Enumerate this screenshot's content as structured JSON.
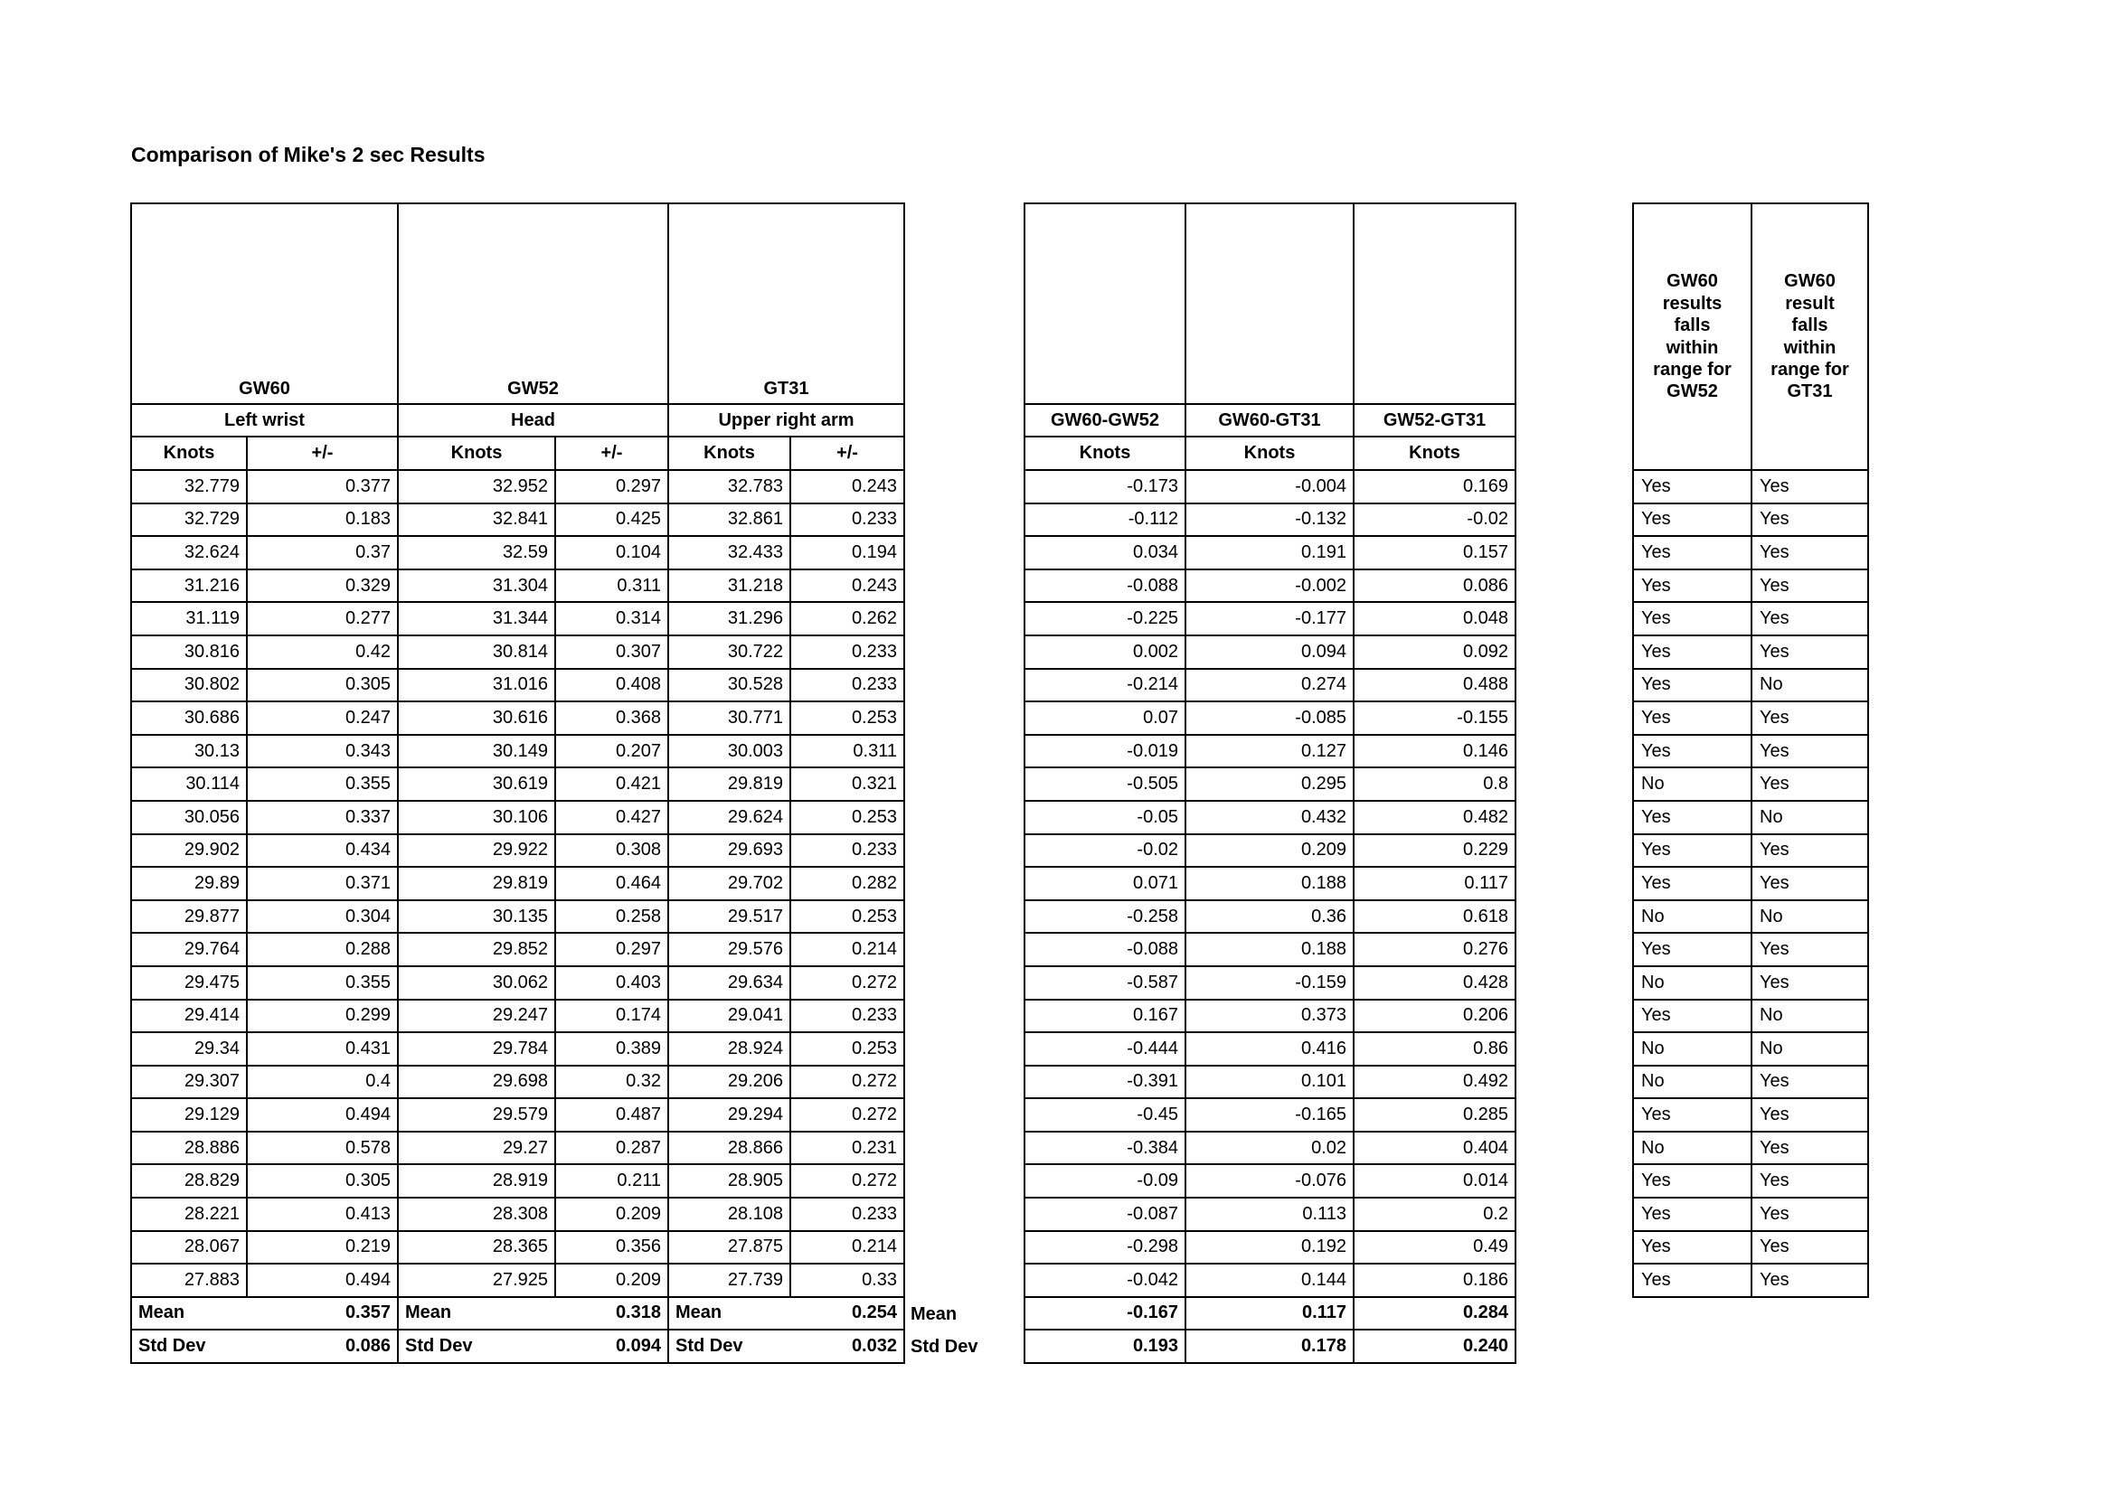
{
  "title": "Comparison of Mike's 2 sec Results",
  "chart_data": {
    "type": "table",
    "main_table": {
      "groups": [
        {
          "device": "GW60",
          "location": "Left wrist"
        },
        {
          "device": "GW52",
          "location": "Head"
        },
        {
          "device": "GT31",
          "location": "Upper right arm"
        }
      ],
      "subheaders": [
        "Knots",
        "+/-"
      ],
      "rows": [
        [
          "32.779",
          "0.377",
          "32.952",
          "0.297",
          "32.783",
          "0.243"
        ],
        [
          "32.729",
          "0.183",
          "32.841",
          "0.425",
          "32.861",
          "0.233"
        ],
        [
          "32.624",
          "0.37",
          "32.59",
          "0.104",
          "32.433",
          "0.194"
        ],
        [
          "31.216",
          "0.329",
          "31.304",
          "0.311",
          "31.218",
          "0.243"
        ],
        [
          "31.119",
          "0.277",
          "31.344",
          "0.314",
          "31.296",
          "0.262"
        ],
        [
          "30.816",
          "0.42",
          "30.814",
          "0.307",
          "30.722",
          "0.233"
        ],
        [
          "30.802",
          "0.305",
          "31.016",
          "0.408",
          "30.528",
          "0.233"
        ],
        [
          "30.686",
          "0.247",
          "30.616",
          "0.368",
          "30.771",
          "0.253"
        ],
        [
          "30.13",
          "0.343",
          "30.149",
          "0.207",
          "30.003",
          "0.311"
        ],
        [
          "30.114",
          "0.355",
          "30.619",
          "0.421",
          "29.819",
          "0.321"
        ],
        [
          "30.056",
          "0.337",
          "30.106",
          "0.427",
          "29.624",
          "0.253"
        ],
        [
          "29.902",
          "0.434",
          "29.922",
          "0.308",
          "29.693",
          "0.233"
        ],
        [
          "29.89",
          "0.371",
          "29.819",
          "0.464",
          "29.702",
          "0.282"
        ],
        [
          "29.877",
          "0.304",
          "30.135",
          "0.258",
          "29.517",
          "0.253"
        ],
        [
          "29.764",
          "0.288",
          "29.852",
          "0.297",
          "29.576",
          "0.214"
        ],
        [
          "29.475",
          "0.355",
          "30.062",
          "0.403",
          "29.634",
          "0.272"
        ],
        [
          "29.414",
          "0.299",
          "29.247",
          "0.174",
          "29.041",
          "0.233"
        ],
        [
          "29.34",
          "0.431",
          "29.784",
          "0.389",
          "28.924",
          "0.253"
        ],
        [
          "29.307",
          "0.4",
          "29.698",
          "0.32",
          "29.206",
          "0.272"
        ],
        [
          "29.129",
          "0.494",
          "29.579",
          "0.487",
          "29.294",
          "0.272"
        ],
        [
          "28.886",
          "0.578",
          "29.27",
          "0.287",
          "28.866",
          "0.231"
        ],
        [
          "28.829",
          "0.305",
          "28.919",
          "0.211",
          "28.905",
          "0.272"
        ],
        [
          "28.221",
          "0.413",
          "28.308",
          "0.209",
          "28.108",
          "0.233"
        ],
        [
          "28.067",
          "0.219",
          "28.365",
          "0.356",
          "27.875",
          "0.214"
        ],
        [
          "27.883",
          "0.494",
          "27.925",
          "0.209",
          "27.739",
          "0.33"
        ]
      ],
      "mean_label": "Mean",
      "stddev_label": "Std Dev",
      "means": [
        "0.357",
        "0.318",
        "0.254"
      ],
      "stddevs": [
        "0.086",
        "0.094",
        "0.032"
      ]
    },
    "diff_table": {
      "headers": [
        "GW60-GW52",
        "GW60-GT31",
        "GW52-GT31"
      ],
      "unit": "Knots",
      "rows": [
        [
          "-0.173",
          "-0.004",
          "0.169"
        ],
        [
          "-0.112",
          "-0.132",
          "-0.02"
        ],
        [
          "0.034",
          "0.191",
          "0.157"
        ],
        [
          "-0.088",
          "-0.002",
          "0.086"
        ],
        [
          "-0.225",
          "-0.177",
          "0.048"
        ],
        [
          "0.002",
          "0.094",
          "0.092"
        ],
        [
          "-0.214",
          "0.274",
          "0.488"
        ],
        [
          "0.07",
          "-0.085",
          "-0.155"
        ],
        [
          "-0.019",
          "0.127",
          "0.146"
        ],
        [
          "-0.505",
          "0.295",
          "0.8"
        ],
        [
          "-0.05",
          "0.432",
          "0.482"
        ],
        [
          "-0.02",
          "0.209",
          "0.229"
        ],
        [
          "0.071",
          "0.188",
          "0.117"
        ],
        [
          "-0.258",
          "0.36",
          "0.618"
        ],
        [
          "-0.088",
          "0.188",
          "0.276"
        ],
        [
          "-0.587",
          "-0.159",
          "0.428"
        ],
        [
          "0.167",
          "0.373",
          "0.206"
        ],
        [
          "-0.444",
          "0.416",
          "0.86"
        ],
        [
          "-0.391",
          "0.101",
          "0.492"
        ],
        [
          "-0.45",
          "-0.165",
          "0.285"
        ],
        [
          "-0.384",
          "0.02",
          "0.404"
        ],
        [
          "-0.09",
          "-0.076",
          "0.014"
        ],
        [
          "-0.087",
          "0.113",
          "0.2"
        ],
        [
          "-0.298",
          "0.192",
          "0.49"
        ],
        [
          "-0.042",
          "0.144",
          "0.186"
        ]
      ],
      "mean_label": "Mean",
      "stddev_label": "Std Dev",
      "means": [
        "-0.167",
        "0.117",
        "0.284"
      ],
      "stddevs": [
        "0.193",
        "0.178",
        "0.240"
      ]
    },
    "range_table": {
      "headers": [
        "GW60\nresults\nfalls\nwithin\nrange for\nGW52",
        "GW60\nresult\nfalls\nwithin\nrange for\nGT31"
      ],
      "rows": [
        [
          "Yes",
          "Yes"
        ],
        [
          "Yes",
          "Yes"
        ],
        [
          "Yes",
          "Yes"
        ],
        [
          "Yes",
          "Yes"
        ],
        [
          "Yes",
          "Yes"
        ],
        [
          "Yes",
          "Yes"
        ],
        [
          "Yes",
          "No"
        ],
        [
          "Yes",
          "Yes"
        ],
        [
          "Yes",
          "Yes"
        ],
        [
          "No",
          "Yes"
        ],
        [
          "Yes",
          "No"
        ],
        [
          "Yes",
          "Yes"
        ],
        [
          "Yes",
          "Yes"
        ],
        [
          "No",
          "No"
        ],
        [
          "Yes",
          "Yes"
        ],
        [
          "No",
          "Yes"
        ],
        [
          "Yes",
          "No"
        ],
        [
          "No",
          "No"
        ],
        [
          "No",
          "Yes"
        ],
        [
          "Yes",
          "Yes"
        ],
        [
          "No",
          "Yes"
        ],
        [
          "Yes",
          "Yes"
        ],
        [
          "Yes",
          "Yes"
        ],
        [
          "Yes",
          "Yes"
        ],
        [
          "Yes",
          "Yes"
        ]
      ]
    }
  }
}
